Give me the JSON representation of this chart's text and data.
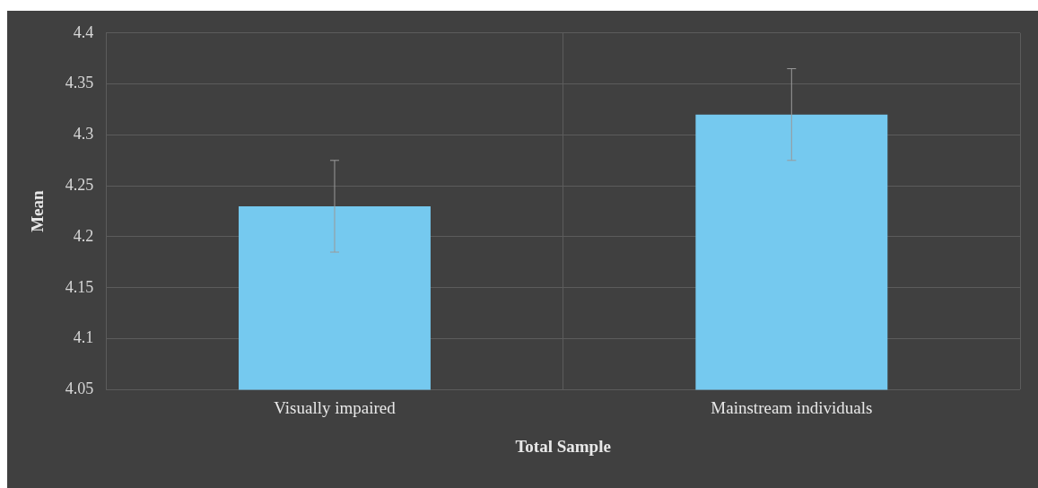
{
  "chart_data": {
    "type": "bar",
    "xlabel": "Total Sample",
    "ylabel": "Mean",
    "categories": [
      "Visually impaired",
      "Mainstream individuals"
    ],
    "values": [
      4.23,
      4.32
    ],
    "color": "#75c9ef",
    "errors": [
      0.045,
      0.045
    ],
    "ylim": [
      4.05,
      4.4
    ],
    "yticks": [
      4.05,
      4.1,
      4.15,
      4.2,
      4.25,
      4.3,
      4.35,
      4.4
    ],
    "grid": true
  }
}
